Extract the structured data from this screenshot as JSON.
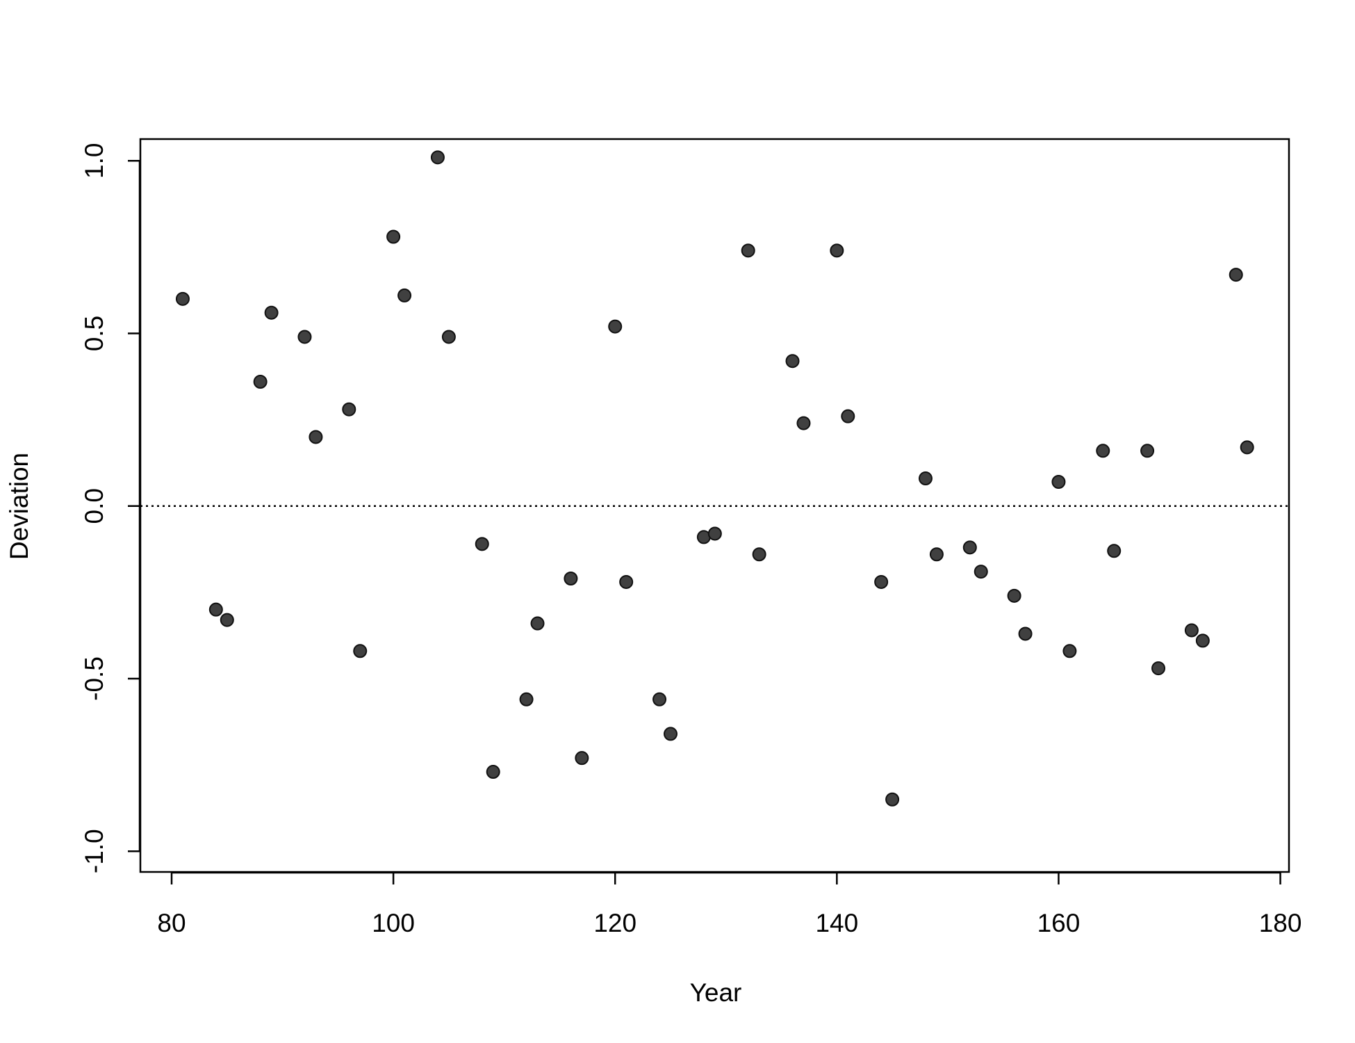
{
  "chart_data": {
    "type": "scatter",
    "x_label": "Year",
    "y_label": "Deviation",
    "x": [
      81,
      84,
      85,
      88,
      89,
      92,
      93,
      96,
      97,
      100,
      101,
      104,
      105,
      108,
      109,
      112,
      113,
      116,
      117,
      120,
      121,
      124,
      125,
      128,
      129,
      132,
      133,
      136,
      137,
      140,
      141,
      144,
      145,
      148,
      149,
      152,
      153,
      156,
      157,
      160,
      161,
      164,
      165,
      168,
      169,
      172,
      173,
      176,
      177
    ],
    "values": [
      0.6,
      -0.3,
      -0.33,
      0.36,
      0.56,
      0.49,
      0.2,
      0.28,
      -0.42,
      0.78,
      0.61,
      1.01,
      0.49,
      -0.11,
      -0.77,
      -0.56,
      -0.34,
      -0.21,
      -0.73,
      0.52,
      -0.22,
      -0.56,
      -0.66,
      -0.09,
      -0.08,
      0.74,
      -0.14,
      0.42,
      0.24,
      0.74,
      0.26,
      -0.22,
      -0.85,
      0.08,
      -0.14,
      -0.12,
      -0.19,
      -0.26,
      -0.37,
      0.07,
      -0.42,
      0.16,
      -0.13,
      0.16,
      -0.47,
      -0.36,
      -0.39,
      0.67,
      0.17
    ],
    "color": "#404040",
    "xlim": [
      77.18,
      180.78
    ],
    "ylim": [
      -1.06,
      1.063
    ],
    "xticks": [
      80,
      100,
      120,
      140,
      160,
      180
    ],
    "yticks": [
      {
        "value": -1,
        "label": "-1.0"
      },
      -0.5,
      {
        "value": 0,
        "label": "0.0"
      },
      0.5,
      {
        "value": 1,
        "label": "1.0"
      }
    ],
    "hline": 0
  }
}
